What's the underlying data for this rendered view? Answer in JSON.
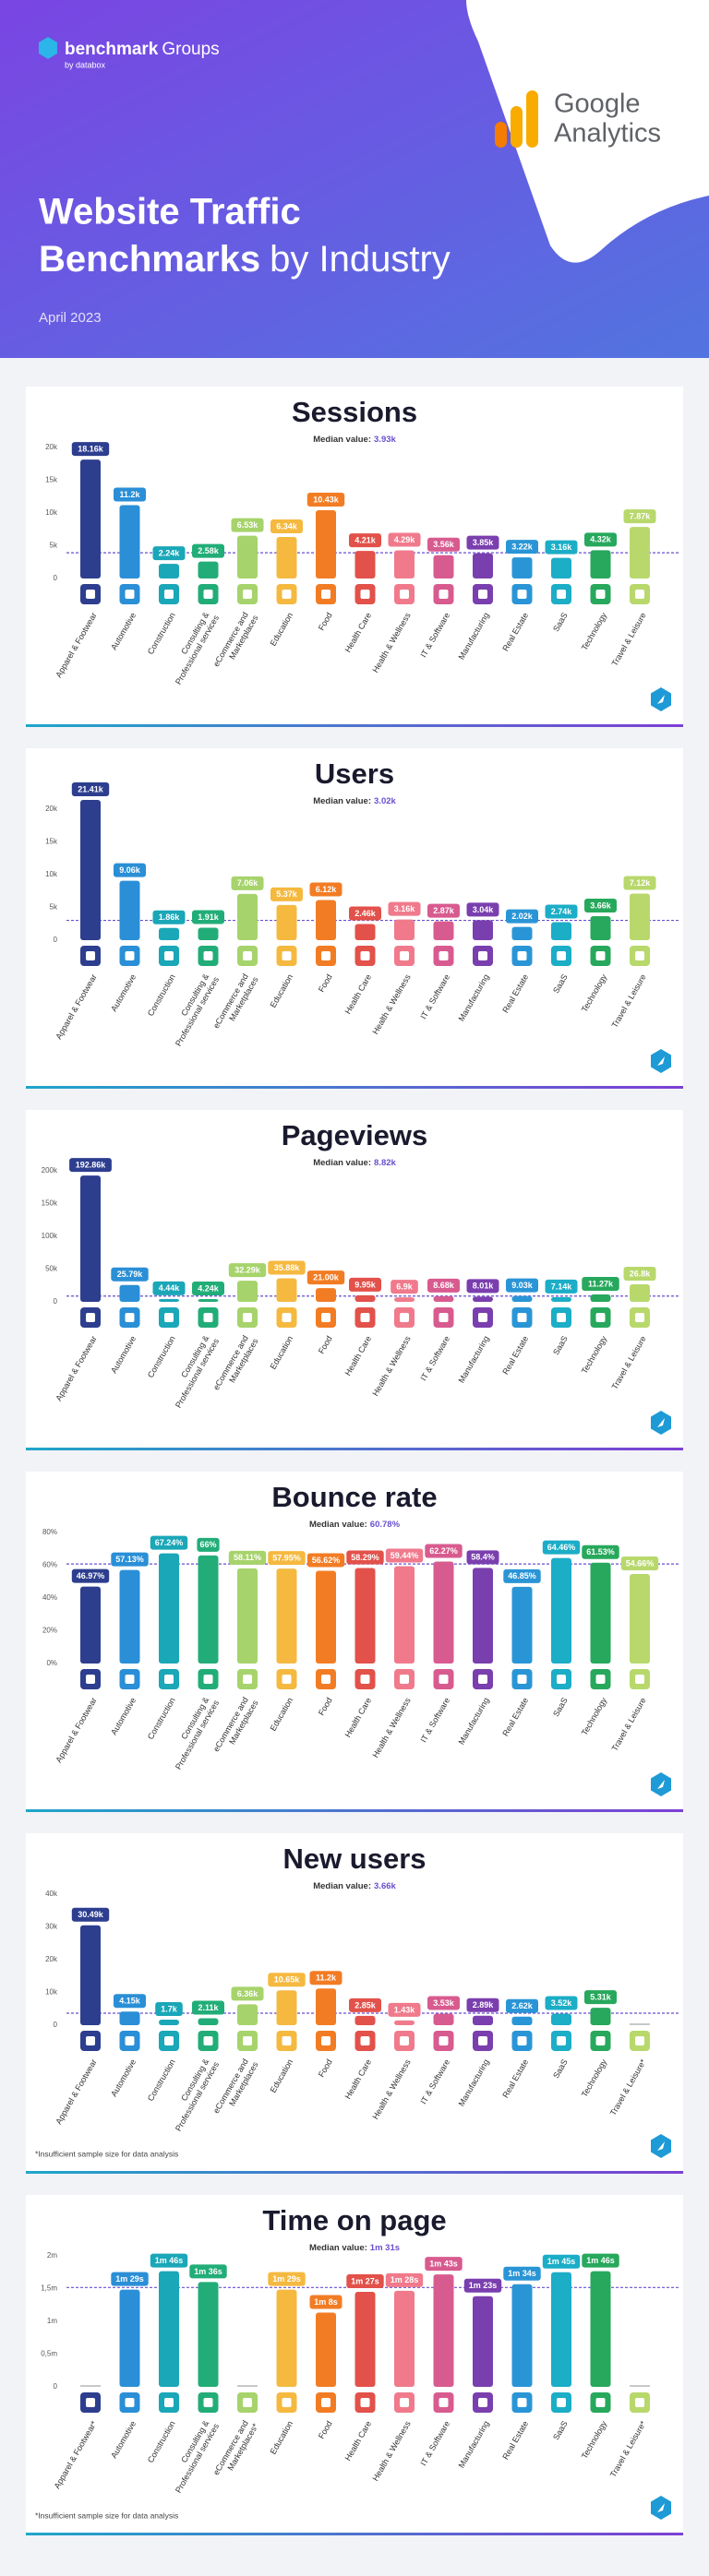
{
  "header": {
    "brand": "benchmark",
    "brand_suffix": "Groups",
    "byline": "by databox",
    "partner_line1": "Google",
    "partner_line2": "Analytics",
    "title_line1": "Website Traffic",
    "title_line2": "Benchmarks",
    "title_suffix": "by Industry",
    "date": "April 2023"
  },
  "chart_data": [
    {
      "type": "bar",
      "title": "Sessions",
      "median_text": "Median value:",
      "median": {
        "value": 3930,
        "label": "3.93k"
      },
      "categories": [
        "Apparel & Footwear",
        "Automotive",
        "Construction",
        "Consulting & Professional services",
        "eCommerce and Marketplaces",
        "Education",
        "Food",
        "Health Care",
        "Health & Wellness",
        "IT & Software",
        "Manufacturing",
        "Real Estate",
        "SaaS",
        "Technology",
        "Travel & Leisure"
      ],
      "values": [
        18160,
        11200,
        2240,
        2580,
        6530,
        6340,
        10430,
        4210,
        4290,
        3560,
        3850,
        3220,
        3160,
        4320,
        7870
      ],
      "value_labels": [
        "18.16k",
        "11.2k",
        "2.24k",
        "2.58k",
        "6.53k",
        "6.34k",
        "10.43k",
        "4.21k",
        "4.29k",
        "3.56k",
        "3.85k",
        "3.22k",
        "3.16k",
        "4.32k",
        "7.87k"
      ],
      "colors": [
        "#2d3e8f",
        "#2a8fd6",
        "#1aa7b8",
        "#22ad78",
        "#a6d36b",
        "#f5b940",
        "#f27c24",
        "#e2514a",
        "#f07a8c",
        "#d85b8f",
        "#7a3fae",
        "#2a95d6",
        "#1cadc7",
        "#27a85c",
        "#b8d86c"
      ],
      "ylim": [
        0,
        20000
      ],
      "yticks": [
        0,
        {
          "value": 5000,
          "label": "5k"
        },
        {
          "value": 10000,
          "label": "10k"
        },
        {
          "value": 15000,
          "label": "15k"
        },
        {
          "value": 20000,
          "label": "20k"
        }
      ]
    },
    {
      "type": "bar",
      "title": "Users",
      "median_text": "Median value:",
      "median": {
        "value": 3020,
        "label": "3.02k"
      },
      "categories": [
        "Apparel & Footwear",
        "Automotive",
        "Construction",
        "Consulting & Professional services",
        "eCommerce and Marketplaces",
        "Education",
        "Food",
        "Health Care",
        "Health & Wellness",
        "IT & Software",
        "Manufacturing",
        "Real Estate",
        "SaaS",
        "Technology",
        "Travel & Leisure"
      ],
      "values": [
        21410,
        9060,
        1860,
        1910,
        7060,
        5370,
        6120,
        2460,
        3160,
        2870,
        3040,
        2020,
        2740,
        3660,
        7120
      ],
      "value_labels": [
        "21.41k",
        "9.06k",
        "1.86k",
        "1.91k",
        "7.06k",
        "5.37k",
        "6.12k",
        "2.46k",
        "3.16k",
        "2.87k",
        "3.04k",
        "2.02k",
        "2.74k",
        "3.66k",
        "7.12k"
      ],
      "colors": [
        "#2d3e8f",
        "#2a8fd6",
        "#1aa7b8",
        "#22ad78",
        "#a6d36b",
        "#f5b940",
        "#f27c24",
        "#e2514a",
        "#f07a8c",
        "#d85b8f",
        "#7a3fae",
        "#2a95d6",
        "#1cadc7",
        "#27a85c",
        "#b8d86c"
      ],
      "ylim": [
        0,
        20000
      ],
      "yticks": [
        0,
        {
          "value": 5000,
          "label": "5k"
        },
        {
          "value": 10000,
          "label": "10k"
        },
        {
          "value": 15000,
          "label": "15k"
        },
        {
          "value": 20000,
          "label": "20k"
        }
      ]
    },
    {
      "type": "bar",
      "title": "Pageviews",
      "median_text": "Median value:",
      "median": {
        "value": 8820,
        "label": "8.82k"
      },
      "categories": [
        "Apparel & Footwear",
        "Automotive",
        "Construction",
        "Consulting & Professional services",
        "eCommerce and Marketplaces",
        "Education",
        "Food",
        "Health Care",
        "Health & Wellness",
        "IT & Software",
        "Manufacturing",
        "Real Estate",
        "SaaS",
        "Technology",
        "Travel & Leisure"
      ],
      "values": [
        192860,
        25790,
        4440,
        4240,
        32290,
        35880,
        21000,
        9950,
        6900,
        8680,
        8010,
        9030,
        7140,
        11270,
        26800
      ],
      "value_labels": [
        "192.86k",
        "25.79k",
        "4.44k",
        "4.24k",
        "32.29k",
        "35.88k",
        "21.00k",
        "9.95k",
        "6.9k",
        "8.68k",
        "8.01k",
        "9.03k",
        "7.14k",
        "11.27k",
        "26.8k"
      ],
      "colors": [
        "#2d3e8f",
        "#2a8fd6",
        "#1aa7b8",
        "#22ad78",
        "#a6d36b",
        "#f5b940",
        "#f27c24",
        "#e2514a",
        "#f07a8c",
        "#d85b8f",
        "#7a3fae",
        "#2a95d6",
        "#1cadc7",
        "#27a85c",
        "#b8d86c"
      ],
      "ylim": [
        0,
        200000
      ],
      "yticks": [
        0,
        {
          "value": 50000,
          "label": "50k"
        },
        {
          "value": 100000,
          "label": "100k"
        },
        {
          "value": 150000,
          "label": "150k"
        },
        {
          "value": 200000,
          "label": "200k"
        }
      ]
    },
    {
      "type": "bar",
      "title": "Bounce rate",
      "median_text": "Median value:",
      "median": {
        "value": 60.78,
        "label": "60.78%"
      },
      "categories": [
        "Apparel & Footwear",
        "Automotive",
        "Construction",
        "Consulting & Professional services",
        "eCommerce and Marketplaces",
        "Education",
        "Food",
        "Health Care",
        "Health & Wellness",
        "IT & Software",
        "Manufacturing",
        "Real Estate",
        "SaaS",
        "Technology",
        "Travel & Leisure"
      ],
      "values": [
        46.97,
        57.13,
        67.24,
        66,
        58.11,
        57.95,
        56.62,
        58.29,
        59.44,
        62.27,
        58.4,
        46.85,
        64.46,
        61.53,
        54.66
      ],
      "value_labels": [
        "46.97%",
        "57.13%",
        "67.24%",
        "66%",
        "58.11%",
        "57.95%",
        "56.62%",
        "58.29%",
        "59.44%",
        "62.27%",
        "58.4%",
        "46.85%",
        "64.46%",
        "61.53%",
        "54.66%"
      ],
      "colors": [
        "#2d3e8f",
        "#2a8fd6",
        "#1aa7b8",
        "#22ad78",
        "#a6d36b",
        "#f5b940",
        "#f27c24",
        "#e2514a",
        "#f07a8c",
        "#d85b8f",
        "#7a3fae",
        "#2a95d6",
        "#1cadc7",
        "#27a85c",
        "#b8d86c"
      ],
      "ylim": [
        0,
        80
      ],
      "yticks": [
        {
          "value": 0,
          "label": "0%"
        },
        {
          "value": 20,
          "label": "20%"
        },
        {
          "value": 40,
          "label": "40%"
        },
        {
          "value": 60,
          "label": "60%"
        },
        {
          "value": 80,
          "label": "80%"
        }
      ]
    },
    {
      "type": "bar",
      "title": "New users",
      "median_text": "Median value:",
      "median": {
        "value": 3660,
        "label": "3.66k"
      },
      "categories": [
        "Apparel & Footwear",
        "Automotive",
        "Construction",
        "Consulting & Professional services",
        "eCommerce and Marketplaces",
        "Education",
        "Food",
        "Health Care",
        "Health & Wellness",
        "IT & Software",
        "Manufacturing",
        "Real Estate",
        "SaaS",
        "Technology",
        "Travel & Leisure*"
      ],
      "values": [
        30490,
        4150,
        1700,
        2110,
        6360,
        10650,
        11200,
        2850,
        1430,
        3530,
        2890,
        2620,
        3520,
        5310,
        null
      ],
      "value_labels": [
        "30.49k",
        "4.15k",
        "1.7k",
        "2.11k",
        "6.36k",
        "10.65k",
        "11.2k",
        "2.85k",
        "1.43k",
        "3.53k",
        "2.89k",
        "2.62k",
        "3.52k",
        "5.31k",
        null
      ],
      "colors": [
        "#2d3e8f",
        "#2a8fd6",
        "#1aa7b8",
        "#22ad78",
        "#a6d36b",
        "#f5b940",
        "#f27c24",
        "#e2514a",
        "#f07a8c",
        "#d85b8f",
        "#7a3fae",
        "#2a95d6",
        "#1cadc7",
        "#27a85c",
        "#b8d86c"
      ],
      "ylim": [
        0,
        40000
      ],
      "yticks": [
        0,
        {
          "value": 10000,
          "label": "10k"
        },
        {
          "value": 20000,
          "label": "20k"
        },
        {
          "value": 30000,
          "label": "30k"
        },
        {
          "value": 40000,
          "label": "40k"
        }
      ],
      "footnote": "*Insufficient sample size for data analysis"
    },
    {
      "type": "bar",
      "title": "Time on page",
      "median_text": "Median value:",
      "median": {
        "value": 91,
        "label": "1m 31s"
      },
      "categories": [
        "Apparel & Footwear*",
        "Automotive",
        "Construction",
        "Consulting & Professional services",
        "eCommerce and Marketplaces*",
        "Education",
        "Food",
        "Health Care",
        "Health & Wellness",
        "IT & Software",
        "Manufacturing",
        "Real Estate",
        "SaaS",
        "Technology",
        "Travel & Leisure*"
      ],
      "values": [
        null,
        89,
        106,
        96,
        null,
        89,
        68,
        87,
        88,
        103,
        83,
        94,
        105,
        106,
        null
      ],
      "value_labels": [
        null,
        "1m 29s",
        "1m 46s",
        "1m 36s",
        null,
        "1m 29s",
        "1m 8s",
        "1m 27s",
        "1m 28s",
        "1m 43s",
        "1m 23s",
        "1m 34s",
        "1m 45s",
        "1m 46s",
        null
      ],
      "colors": [
        "#2d3e8f",
        "#2a8fd6",
        "#1aa7b8",
        "#22ad78",
        "#a6d36b",
        "#f5b940",
        "#f27c24",
        "#e2514a",
        "#f07a8c",
        "#d85b8f",
        "#7a3fae",
        "#2a95d6",
        "#1cadc7",
        "#27a85c",
        "#b8d86c"
      ],
      "ylim": [
        0,
        120
      ],
      "yticks": [
        0,
        {
          "value": 30,
          "label": "0,5m"
        },
        {
          "value": 60,
          "label": "1m"
        },
        {
          "value": 90,
          "label": "1,5m"
        },
        {
          "value": 120,
          "label": "2m"
        }
      ],
      "footnote": "*Insufficient sample size for data analysis"
    }
  ]
}
